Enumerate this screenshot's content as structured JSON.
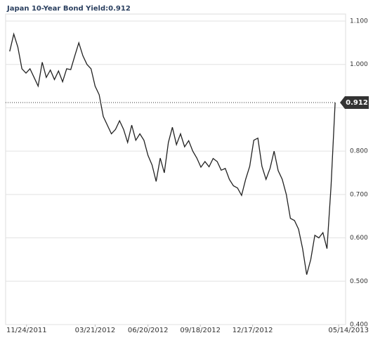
{
  "chart_data": {
    "type": "line",
    "title": "Japan 10-Year Bond Yield:",
    "x": [
      "2011-10-26",
      "2011-11-02",
      "2011-11-09",
      "2011-11-16",
      "2011-11-23",
      "2011-11-30",
      "2011-12-07",
      "2011-12-14",
      "2011-12-21",
      "2011-12-28",
      "2012-01-04",
      "2012-01-11",
      "2012-01-18",
      "2012-01-25",
      "2012-02-01",
      "2012-02-08",
      "2012-02-15",
      "2012-02-22",
      "2012-02-29",
      "2012-03-07",
      "2012-03-14",
      "2012-03-21",
      "2012-03-28",
      "2012-04-04",
      "2012-04-11",
      "2012-04-18",
      "2012-04-25",
      "2012-05-02",
      "2012-05-09",
      "2012-05-16",
      "2012-05-23",
      "2012-05-30",
      "2012-06-06",
      "2012-06-13",
      "2012-06-20",
      "2012-06-27",
      "2012-07-04",
      "2012-07-11",
      "2012-07-18",
      "2012-07-25",
      "2012-08-01",
      "2012-08-08",
      "2012-08-15",
      "2012-08-22",
      "2012-08-29",
      "2012-09-05",
      "2012-09-12",
      "2012-09-19",
      "2012-09-26",
      "2012-10-03",
      "2012-10-10",
      "2012-10-17",
      "2012-10-24",
      "2012-10-31",
      "2012-11-07",
      "2012-11-14",
      "2012-11-21",
      "2012-11-28",
      "2012-12-05",
      "2012-12-12",
      "2012-12-19",
      "2012-12-26",
      "2013-01-02",
      "2013-01-09",
      "2013-01-16",
      "2013-01-23",
      "2013-01-30",
      "2013-02-06",
      "2013-02-13",
      "2013-02-20",
      "2013-02-27",
      "2013-03-06",
      "2013-03-13",
      "2013-03-20",
      "2013-03-27",
      "2013-04-03",
      "2013-04-10",
      "2013-04-17",
      "2013-04-24",
      "2013-05-01",
      "2013-05-08"
    ],
    "series": [
      {
        "name": "Japan 10-Year Bond Yield",
        "color": "#222222",
        "values": [
          1.03,
          1.07,
          1.04,
          0.99,
          0.98,
          0.99,
          0.97,
          0.95,
          1.005,
          0.97,
          0.987,
          0.965,
          0.985,
          0.96,
          0.99,
          0.988,
          1.02,
          1.05,
          1.02,
          1.0,
          0.99,
          0.95,
          0.93,
          0.88,
          0.86,
          0.84,
          0.85,
          0.87,
          0.85,
          0.82,
          0.86,
          0.825,
          0.84,
          0.825,
          0.79,
          0.768,
          0.73,
          0.784,
          0.75,
          0.82,
          0.855,
          0.815,
          0.84,
          0.81,
          0.824,
          0.8,
          0.784,
          0.763,
          0.776,
          0.764,
          0.783,
          0.776,
          0.756,
          0.76,
          0.735,
          0.72,
          0.715,
          0.698,
          0.735,
          0.765,
          0.825,
          0.83,
          0.765,
          0.735,
          0.76,
          0.8,
          0.755,
          0.735,
          0.7,
          0.645,
          0.64,
          0.62,
          0.575,
          0.515,
          0.55,
          0.606,
          0.6,
          0.612,
          0.575,
          0.72,
          0.912
        ]
      }
    ],
    "xlim": [
      "2011-10-19",
      "2013-05-26"
    ],
    "xticks": [
      {
        "value": "2011-11-24",
        "label": "11/24/2011"
      },
      {
        "value": "2012-03-21",
        "label": "03/21/2012"
      },
      {
        "value": "2012-06-20",
        "label": "06/20/2012"
      },
      {
        "value": "2012-09-18",
        "label": "09/18/2012"
      },
      {
        "value": "2012-12-17",
        "label": "12/17/2012"
      },
      {
        "value": "2013-05-14",
        "label": "05/14/2013"
      }
    ],
    "ylim": [
      0.4,
      1.1
    ],
    "yticks": [
      {
        "value": 0.4,
        "label": "0.400"
      },
      {
        "value": 0.5,
        "label": "0.500"
      },
      {
        "value": 0.6,
        "label": "0.600"
      },
      {
        "value": 0.7,
        "label": "0.700"
      },
      {
        "value": 0.8,
        "label": "0.800"
      },
      {
        "value": 0.9,
        "label": null
      },
      {
        "value": 1.0,
        "label": "1.000"
      },
      {
        "value": 1.1,
        "label": "1.100"
      }
    ],
    "grid": true
  }
}
